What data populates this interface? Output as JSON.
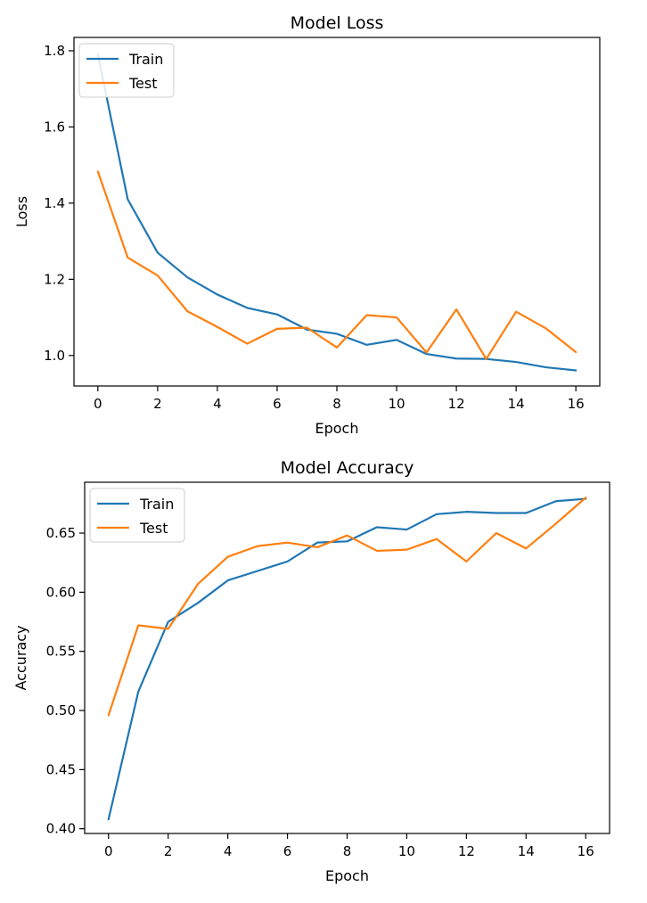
{
  "colors": {
    "train": "#1f77b4",
    "test": "#ff7f0e",
    "axes": "#000000",
    "background": "#ffffff"
  },
  "chart_data": [
    {
      "type": "line",
      "title": "Model Loss",
      "xlabel": "Epoch",
      "ylabel": "Loss",
      "xlim": [
        -0.8,
        16.8
      ],
      "ylim": [
        0.92,
        1.835
      ],
      "xticks": [
        0,
        2,
        4,
        6,
        8,
        10,
        12,
        14,
        16
      ],
      "xtick_labels": [
        "0",
        "2",
        "4",
        "6",
        "8",
        "10",
        "12",
        "14",
        "16"
      ],
      "yticks": [
        1.0,
        1.2,
        1.4,
        1.6,
        1.8
      ],
      "ytick_labels": [
        "1.0",
        "1.2",
        "1.4",
        "1.6",
        "1.8"
      ],
      "grid": false,
      "legend_position": "upper-left",
      "x": [
        0,
        1,
        2,
        3,
        4,
        5,
        6,
        7,
        8,
        9,
        10,
        11,
        12,
        13,
        14,
        15,
        16
      ],
      "series": [
        {
          "name": "Train",
          "color_key": "train",
          "values": [
            1.79,
            1.41,
            1.27,
            1.205,
            1.16,
            1.125,
            1.108,
            1.068,
            1.057,
            1.028,
            1.041,
            1.004,
            0.992,
            0.991,
            0.983,
            0.969,
            0.961
          ]
        },
        {
          "name": "Test",
          "color_key": "test",
          "values": [
            1.483,
            1.257,
            1.21,
            1.116,
            1.075,
            1.031,
            1.07,
            1.073,
            1.021,
            1.106,
            1.1,
            1.008,
            1.121,
            0.991,
            1.115,
            1.071,
            1.009
          ]
        }
      ]
    },
    {
      "type": "line",
      "title": "Model Accuracy",
      "xlabel": "Epoch",
      "ylabel": "Accuracy",
      "xlim": [
        -0.8,
        16.8
      ],
      "ylim": [
        0.396,
        0.693
      ],
      "xticks": [
        0,
        2,
        4,
        6,
        8,
        10,
        12,
        14,
        16
      ],
      "xtick_labels": [
        "0",
        "2",
        "4",
        "6",
        "8",
        "10",
        "12",
        "14",
        "16"
      ],
      "yticks": [
        0.4,
        0.45,
        0.5,
        0.55,
        0.6,
        0.65
      ],
      "ytick_labels": [
        "0.40",
        "0.45",
        "0.50",
        "0.55",
        "0.60",
        "0.65"
      ],
      "grid": false,
      "legend_position": "upper-left",
      "x": [
        0,
        1,
        2,
        3,
        4,
        5,
        6,
        7,
        8,
        9,
        10,
        11,
        12,
        13,
        14,
        15,
        16
      ],
      "series": [
        {
          "name": "Train",
          "color_key": "train",
          "values": [
            0.408,
            0.516,
            0.575,
            0.591,
            0.61,
            0.618,
            0.626,
            0.642,
            0.643,
            0.655,
            0.653,
            0.666,
            0.668,
            0.667,
            0.667,
            0.677,
            0.679
          ]
        },
        {
          "name": "Test",
          "color_key": "test",
          "values": [
            0.496,
            0.572,
            0.569,
            0.607,
            0.63,
            0.639,
            0.642,
            0.638,
            0.648,
            0.635,
            0.636,
            0.645,
            0.626,
            0.65,
            0.637,
            0.658,
            0.68
          ]
        }
      ]
    }
  ]
}
